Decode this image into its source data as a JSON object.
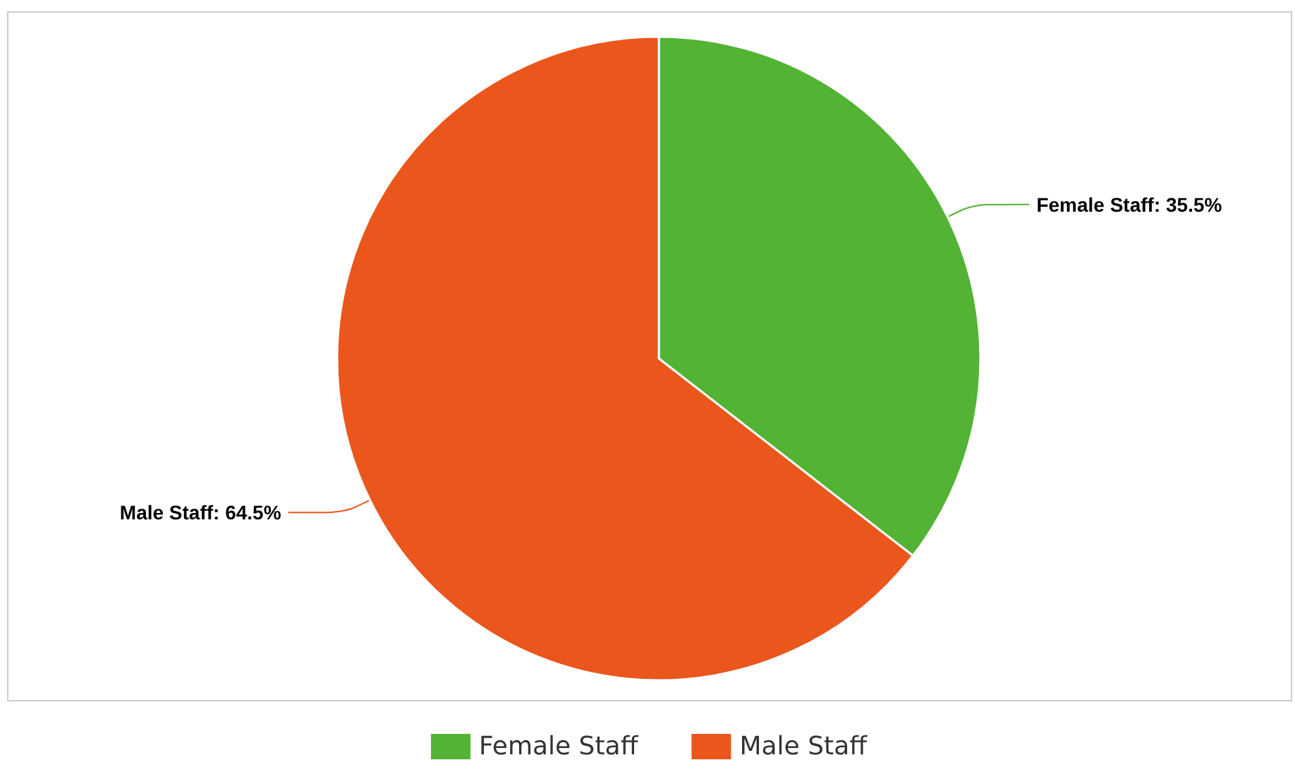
{
  "chart_data": {
    "type": "pie",
    "categories": [
      "Female Staff",
      "Male Staff"
    ],
    "values": [
      35.5,
      64.5
    ],
    "colors": [
      "#53b334",
      "#ea561c"
    ],
    "value_labels": [
      "Female Staff: 35.5%",
      "Male Staff: 64.5%"
    ],
    "legend": "bottom"
  }
}
